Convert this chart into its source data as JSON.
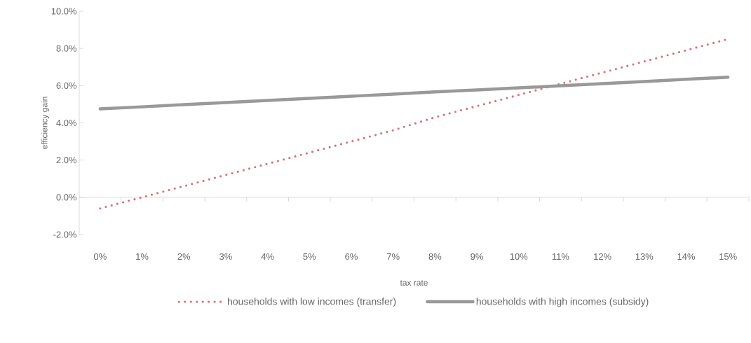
{
  "chart_data": {
    "type": "line",
    "xlabel": "tax rate",
    "ylabel": "efficiency gain",
    "categories": [
      "0%",
      "1%",
      "2%",
      "3%",
      "4%",
      "5%",
      "6%",
      "7%",
      "8%",
      "9%",
      "10%",
      "11%",
      "12%",
      "13%",
      "14%",
      "15%"
    ],
    "series": [
      {
        "name": "households with low incomes (transfer)",
        "color": "#d4707f",
        "line_style": "dotted",
        "values": [
          -0.6,
          0.0,
          0.6,
          1.2,
          1.8,
          2.4,
          3.0,
          3.6,
          4.3,
          4.9,
          5.5,
          6.1,
          6.7,
          7.3,
          7.9,
          8.5
        ]
      },
      {
        "name": "households with high incomes (subsidy)",
        "color": "#999999",
        "line_style": "solid",
        "values": [
          4.75,
          4.86,
          4.98,
          5.09,
          5.2,
          5.32,
          5.43,
          5.54,
          5.66,
          5.77,
          5.88,
          5.99,
          6.11,
          6.22,
          6.34,
          6.45
        ]
      }
    ],
    "ylim": [
      -2,
      10
    ],
    "yticks": [
      {
        "value": -2,
        "label": "-2.0%"
      },
      {
        "value": 0,
        "label": "0.0%"
      },
      {
        "value": 2,
        "label": "2.0%"
      },
      {
        "value": 4,
        "label": "4.0%"
      },
      {
        "value": 6,
        "label": "6.0%"
      },
      {
        "value": 8,
        "label": "8.0%"
      },
      {
        "value": 10,
        "label": "10.0%"
      }
    ],
    "legend": "bottom",
    "marker": "none"
  }
}
